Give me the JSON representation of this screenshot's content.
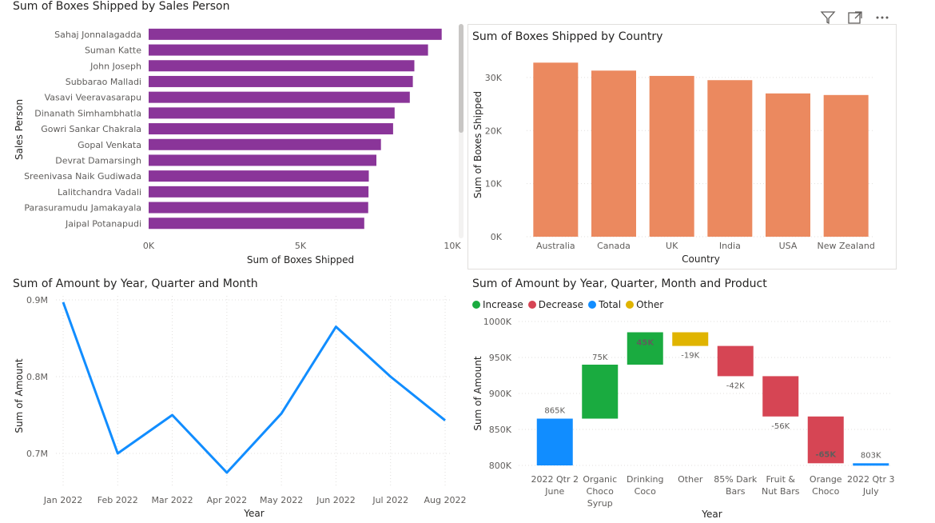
{
  "toolbar": {
    "icons": [
      "filter-icon",
      "focus-mode-icon",
      "more-options-icon"
    ]
  },
  "chart_data": [
    {
      "id": "salesperson",
      "type": "bar",
      "orientation": "horizontal",
      "title": "Sum of Boxes Shipped by Sales Person",
      "xlabel": "Sum of Boxes Shipped",
      "ylabel": "Sales Person",
      "xlim": [
        0,
        10000
      ],
      "xticks": [
        0,
        5000,
        10000
      ],
      "xtick_labels": [
        "0K",
        "5K",
        "10K"
      ],
      "color": "#8A3599",
      "categories": [
        "Sahaj Jonnalagadda",
        "Suman Katte",
        "John Joseph",
        "Subbarao Malladi",
        "Vasavi Veeravasarapu",
        "Dinanath Simhambhatla",
        "Gowri Sankar Chakrala",
        "Gopal Venkata",
        "Devrat Damarsingh",
        "Sreenivasa Naik Gudiwada",
        "Lalitchandra Vadali",
        "Parasuramudu Jamakayala",
        "Jaipal Potanapudi"
      ],
      "values": [
        9650,
        9200,
        8750,
        8700,
        8600,
        8100,
        8050,
        7650,
        7500,
        7250,
        7240,
        7230,
        7100
      ]
    },
    {
      "id": "country",
      "type": "bar",
      "title": "Sum of Boxes Shipped by Country",
      "xlabel": "Country",
      "ylabel": "Sum of Boxes Shipped",
      "ylim": [
        0,
        33000
      ],
      "yticks": [
        0,
        10000,
        20000,
        30000
      ],
      "ytick_labels": [
        "0K",
        "10K",
        "20K",
        "30K"
      ],
      "color": "#EB895F",
      "categories": [
        "Australia",
        "Canada",
        "UK",
        "India",
        "USA",
        "New Zealand"
      ],
      "values": [
        32800,
        31300,
        30300,
        29500,
        27000,
        26700
      ]
    },
    {
      "id": "amount-line",
      "type": "line",
      "title": "Sum of Amount by Year, Quarter and Month",
      "xlabel": "Year",
      "ylabel": "Sum of Amount",
      "ylim": [
        0.66,
        0.9
      ],
      "yticks": [
        0.7,
        0.8,
        0.9
      ],
      "ytick_labels": [
        "0.7M",
        "0.8M",
        "0.9M"
      ],
      "color": "#118DFF",
      "categories": [
        "Jan 2022",
        "Feb 2022",
        "Mar 2022",
        "Apr 2022",
        "May 2022",
        "Jun 2022",
        "Jul 2022",
        "Aug 2022"
      ],
      "values": [
        0.897,
        0.7,
        0.75,
        0.675,
        0.752,
        0.865,
        0.8,
        0.743
      ]
    },
    {
      "id": "waterfall",
      "type": "waterfall",
      "title": "Sum of Amount by Year, Quarter, Month and Product",
      "xlabel": "Year",
      "ylabel": "Sum of Amount",
      "ylim": [
        800000,
        1000000
      ],
      "yticks": [
        800000,
        850000,
        900000,
        950000,
        1000000
      ],
      "ytick_labels": [
        "800K",
        "850K",
        "900K",
        "950K",
        "1000K"
      ],
      "legend": [
        {
          "name": "Increase",
          "color": "#1AAB40"
        },
        {
          "name": "Decrease",
          "color": "#D64554"
        },
        {
          "name": "Total",
          "color": "#118DFF"
        },
        {
          "name": "Other",
          "color": "#E0B400"
        }
      ],
      "steps": [
        {
          "label": [
            "2022 Qtr 2",
            "June"
          ],
          "kind": "total",
          "start": 800000,
          "end": 865000,
          "value_label": "865K"
        },
        {
          "label": [
            "Organic",
            "Choco",
            "Syrup"
          ],
          "kind": "increase",
          "start": 865000,
          "end": 940000,
          "value_label": "75K"
        },
        {
          "label": [
            "Drinking",
            "Coco"
          ],
          "kind": "increase",
          "start": 940000,
          "end": 985000,
          "value_label": "45K"
        },
        {
          "label": [
            "Other"
          ],
          "kind": "other",
          "start": 985000,
          "end": 966000,
          "value_label": "-19K"
        },
        {
          "label": [
            "85% Dark",
            "Bars"
          ],
          "kind": "decrease",
          "start": 966000,
          "end": 924000,
          "value_label": "-42K"
        },
        {
          "label": [
            "Fruit &",
            "Nut Bars"
          ],
          "kind": "decrease",
          "start": 924000,
          "end": 868000,
          "value_label": "-56K"
        },
        {
          "label": [
            "Orange",
            "Choco"
          ],
          "kind": "decrease",
          "start": 868000,
          "end": 803000,
          "value_label": "-65K"
        },
        {
          "label": [
            "2022 Qtr 3",
            "July"
          ],
          "kind": "total",
          "start": 800000,
          "end": 803000,
          "value_label": "803K"
        }
      ]
    }
  ]
}
